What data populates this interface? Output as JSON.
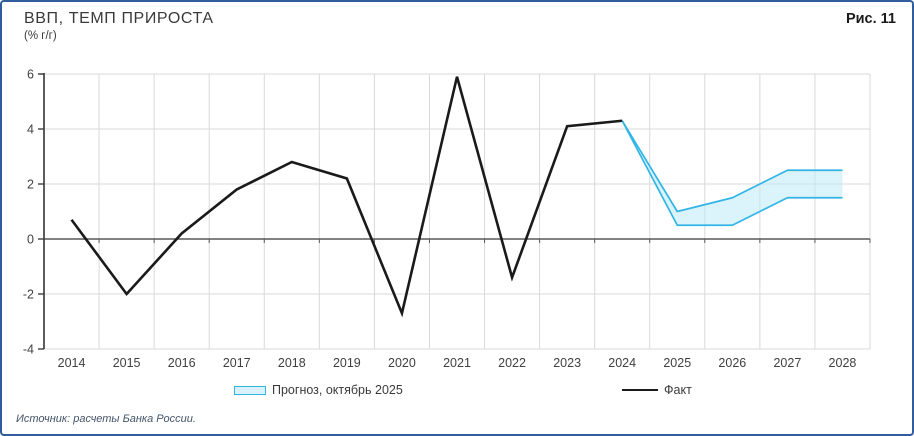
{
  "header": {
    "title": "ВВП, ТЕМП ПРИРОСТА",
    "subtitle": "(% г/г)",
    "figure_label": "Рис. 11"
  },
  "legend": {
    "items": [
      {
        "label": "Прогноз, октябрь 2025",
        "swatch": "band"
      },
      {
        "label": "Факт",
        "swatch": "line"
      }
    ]
  },
  "source": "Источник: расчеты Банка России.",
  "colors": {
    "frame_border": "#2f5d9e",
    "grid": "#d9d9d9",
    "zero_line": "#595959",
    "axis": "#404040",
    "fact_line": "#1a1a1a",
    "forecast_stroke": "#31b5e6",
    "forecast_fill": "#bde9f8",
    "text": "#3a3a3a"
  },
  "chart_data": {
    "type": "line",
    "title": "ВВП, ТЕМП ПРИРОСТА",
    "ylabel": "% г/г",
    "categories": [
      "2014",
      "2015",
      "2016",
      "2017",
      "2018",
      "2019",
      "2020",
      "2021",
      "2022",
      "2023",
      "2024",
      "2025",
      "2026",
      "2027",
      "2028"
    ],
    "ylim": [
      -4,
      6
    ],
    "yticks": [
      6,
      4,
      2,
      0,
      -2,
      -4
    ],
    "grid": true,
    "legend_position": "bottom",
    "series": [
      {
        "name": "Факт",
        "type": "line",
        "color": "#1a1a1a",
        "values": [
          0.7,
          -2.0,
          0.2,
          1.8,
          2.8,
          2.2,
          -2.7,
          5.9,
          -1.4,
          4.1,
          4.3,
          null,
          null,
          null,
          null
        ]
      },
      {
        "name": "Прогноз, октябрь 2025",
        "type": "band",
        "color": "#31b5e6",
        "fill": "#bde9f8",
        "upper": [
          null,
          null,
          null,
          null,
          null,
          null,
          null,
          null,
          null,
          null,
          4.3,
          1.0,
          1.5,
          2.5,
          2.5
        ],
        "lower": [
          null,
          null,
          null,
          null,
          null,
          null,
          null,
          null,
          null,
          null,
          4.3,
          0.5,
          0.5,
          1.5,
          1.5
        ]
      }
    ]
  }
}
